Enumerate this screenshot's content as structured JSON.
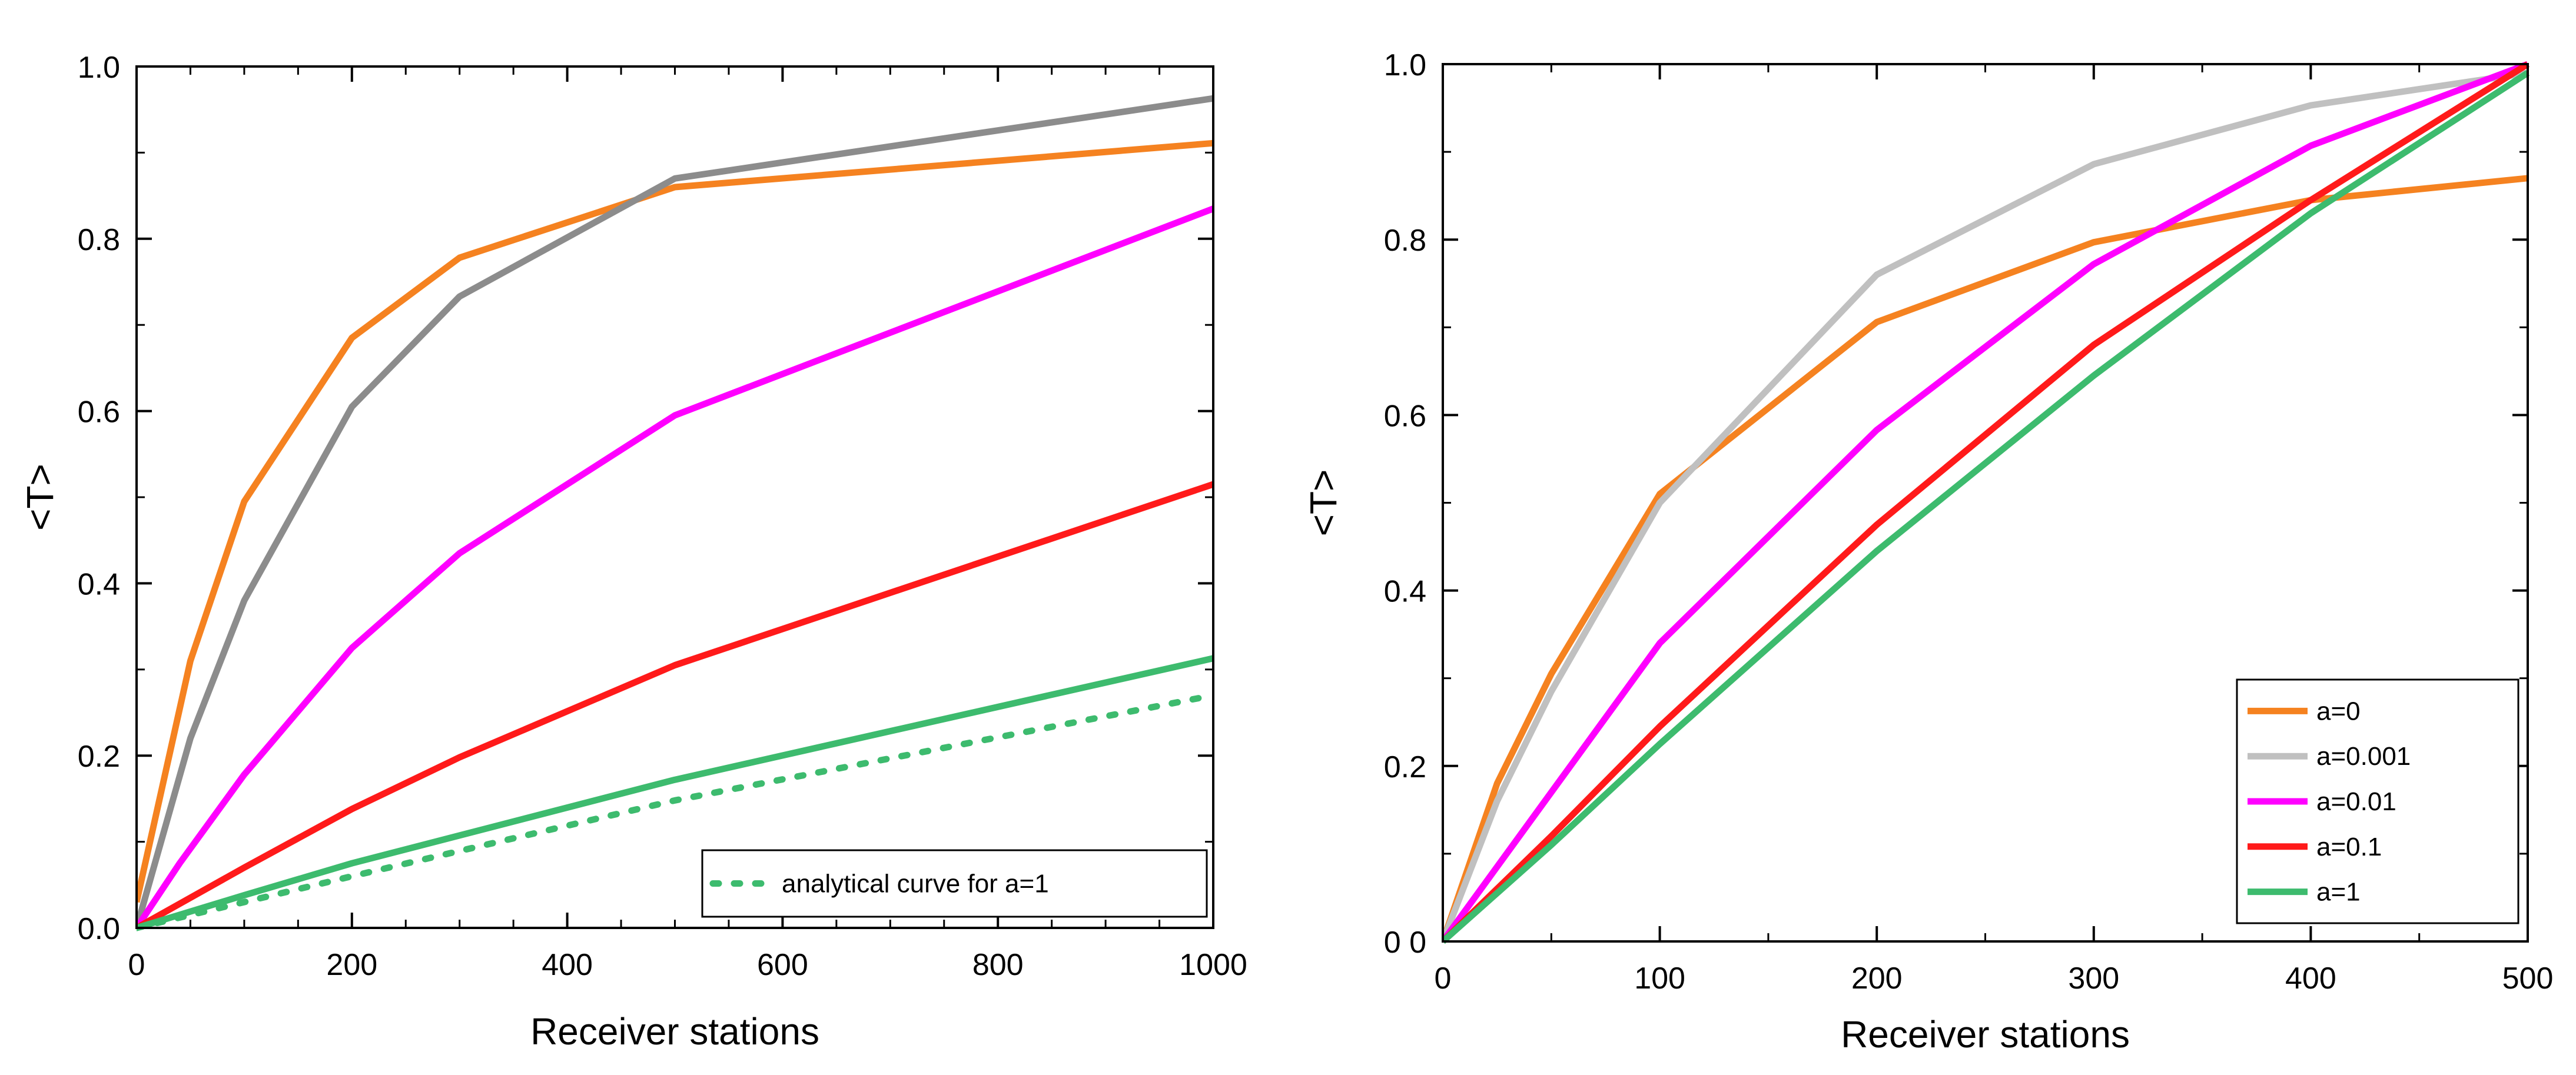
{
  "chart_data": [
    {
      "type": "line",
      "xlabel": "Receiver stations",
      "ylabel": "<T>",
      "xlim": [
        0,
        1000
      ],
      "ylim": [
        0,
        1.0
      ],
      "xticks": [
        0,
        200,
        400,
        600,
        800,
        1000
      ],
      "yticks": [
        0.0,
        0.2,
        0.4,
        0.6,
        0.8,
        1.0
      ],
      "ytick_labels": [
        "0.0",
        "0.2",
        "0.4",
        "0.6",
        "0.8",
        "1.0"
      ],
      "legend_position": "bottom-right",
      "series": [
        {
          "name": "a=0",
          "color": "#f58220",
          "dash": "solid",
          "in_legend": false,
          "x": [
            0,
            50,
            100,
            200,
            300,
            500,
            1000
          ],
          "y": [
            0.03,
            0.31,
            0.495,
            0.685,
            0.778,
            0.86,
            0.911
          ]
        },
        {
          "name": "a=0.001",
          "color": "#8c8c8c",
          "dash": "solid",
          "in_legend": false,
          "x": [
            0,
            50,
            100,
            200,
            300,
            500,
            1000
          ],
          "y": [
            0.0,
            0.22,
            0.38,
            0.605,
            0.733,
            0.87,
            0.963
          ]
        },
        {
          "name": "a=0.01",
          "color": "#ff00ff",
          "dash": "solid",
          "in_legend": false,
          "x": [
            0,
            40,
            100,
            200,
            300,
            500,
            1000
          ],
          "y": [
            0.0,
            0.075,
            0.178,
            0.325,
            0.435,
            0.595,
            0.835
          ]
        },
        {
          "name": "a=0.1",
          "color": "#ff1a1a",
          "dash": "solid",
          "in_legend": false,
          "x": [
            0,
            100,
            200,
            300,
            500,
            1000
          ],
          "y": [
            0.0,
            0.07,
            0.138,
            0.198,
            0.305,
            0.515
          ]
        },
        {
          "name": "a=1",
          "color": "#3dbb6e",
          "dash": "solid",
          "in_legend": false,
          "x": [
            0,
            100,
            200,
            500,
            1000
          ],
          "y": [
            0.0,
            0.038,
            0.075,
            0.172,
            0.313
          ]
        },
        {
          "name": "analytical curve for a=1",
          "color": "#3dbb6e",
          "dash": "dotted",
          "in_legend": true,
          "x": [
            0,
            100,
            200,
            500,
            1000
          ],
          "y": [
            0.0,
            0.03,
            0.06,
            0.148,
            0.27
          ]
        }
      ]
    },
    {
      "type": "line",
      "xlabel": "Receiver stations",
      "ylabel": "<T>",
      "xlim": [
        0,
        500
      ],
      "ylim": [
        0,
        1.0
      ],
      "xticks": [
        0,
        100,
        200,
        300,
        400,
        500
      ],
      "yticks": [
        0.0,
        0.2,
        0.4,
        0.6,
        0.8,
        1.0
      ],
      "ytick_labels": [
        "0 0",
        "0.2",
        "0.4",
        "0.6",
        "0.8",
        "1.0"
      ],
      "legend_position": "bottom-right",
      "series": [
        {
          "name": "a=0",
          "color": "#f58220",
          "dash": "solid",
          "in_legend": true,
          "x": [
            0,
            25,
            50,
            100,
            200,
            300,
            400,
            500
          ],
          "y": [
            0.0,
            0.18,
            0.305,
            0.51,
            0.706,
            0.797,
            0.845,
            0.87
          ]
        },
        {
          "name": "a=0.001",
          "color": "#c0c0c0",
          "dash": "solid",
          "in_legend": true,
          "x": [
            0,
            25,
            50,
            100,
            200,
            300,
            400,
            500
          ],
          "y": [
            0.0,
            0.16,
            0.285,
            0.5,
            0.76,
            0.886,
            0.953,
            0.99
          ]
        },
        {
          "name": "a=0.01",
          "color": "#ff00ff",
          "dash": "solid",
          "in_legend": true,
          "x": [
            0,
            50,
            100,
            200,
            300,
            400,
            500
          ],
          "y": [
            0.0,
            0.17,
            0.34,
            0.583,
            0.772,
            0.907,
            1.0
          ]
        },
        {
          "name": "a=0.1",
          "color": "#ff1a1a",
          "dash": "solid",
          "in_legend": true,
          "x": [
            0,
            50,
            100,
            200,
            300,
            400,
            500
          ],
          "y": [
            0.0,
            0.12,
            0.245,
            0.475,
            0.68,
            0.845,
            1.0
          ]
        },
        {
          "name": "a=1",
          "color": "#3dbb6e",
          "dash": "solid",
          "in_legend": true,
          "x": [
            0,
            50,
            100,
            200,
            300,
            400,
            500
          ],
          "y": [
            0.0,
            0.11,
            0.225,
            0.445,
            0.645,
            0.83,
            0.99
          ]
        }
      ]
    }
  ]
}
